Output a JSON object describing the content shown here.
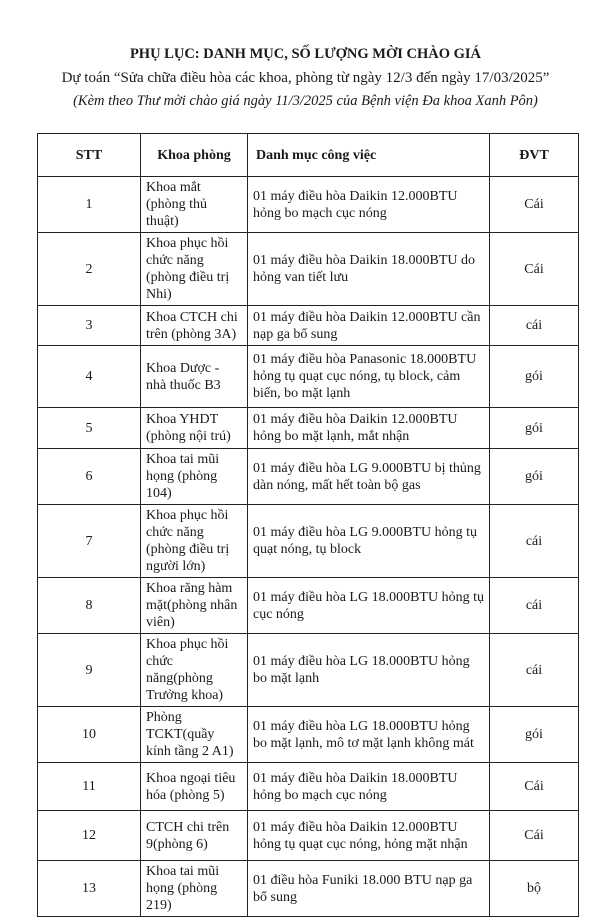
{
  "header": {
    "title": "PHỤ LỤC: DANH MỤC, SỐ LƯỢNG MỜI CHÀO GIÁ",
    "subtitle": "Dự toán “Sửa chữa điều hòa các khoa, phòng từ ngày 12/3 đến ngày 17/03/2025”",
    "note": "(Kèm theo Thư mời chào giá ngày 11/3/2025 của Bệnh viện Đa khoa Xanh Pôn)"
  },
  "table": {
    "columns": [
      "STT",
      "Khoa phòng",
      "Danh mục công việc",
      "ĐVT"
    ],
    "rows": [
      [
        "1",
        "Khoa mắt (phòng thủ thuật)",
        "01 máy điều hòa Daikin 12.000BTU hỏng bo mạch cục nóng",
        "Cái"
      ],
      [
        "2",
        "Khoa phục hồi chức năng (phòng điều trị Nhi)",
        "01 máy điều hòa Daikin 18.000BTU do hỏng van tiết lưu",
        "Cái"
      ],
      [
        "3",
        "Khoa CTCH chi trên (phòng 3A)",
        "01 máy điều hòa Daikin 12.000BTU cần nạp ga bổ sung",
        "cái"
      ],
      [
        "4",
        "Khoa Dược - nhà thuốc B3",
        "01 máy điều hòa Panasonic 18.000BTU hỏng tụ quạt cục nóng, tụ block, cảm biến, bo mặt lạnh",
        "gói"
      ],
      [
        "5",
        "Khoa YHDT (phòng nội trú)",
        "01 máy điều hòa Daikin 12.000BTU hỏng bo mặt lạnh, mắt nhận",
        "gói"
      ],
      [
        "6",
        "Khoa tai mũi họng (phòng 104)",
        "01 máy điều hòa LG 9.000BTU bị thủng dàn nóng, mất hết toàn bộ gas",
        "gói"
      ],
      [
        "7",
        "Khoa phục hồi chức năng (phòng điều trị người lớn)",
        "01 máy điều hòa LG 9.000BTU hỏng tụ quạt nóng, tụ block",
        "cái"
      ],
      [
        "8",
        "Khoa răng hàm mặt(phòng nhân viên)",
        "01 máy điều hòa LG 18.000BTU hỏng tụ cục nóng",
        "cái"
      ],
      [
        "9",
        "Khoa phục hồi chức năng(phòng Trưởng khoa)",
        "01 máy điều hòa LG 18.000BTU hỏng bo mặt lạnh",
        "cái"
      ],
      [
        "10",
        "Phòng TCKT(quầy kính tầng 2 A1)",
        "01 máy điều hòa LG 18.000BTU hỏng bo mặt lạnh, mô tơ mặt lạnh không mát",
        "gói"
      ],
      [
        "11",
        "Khoa ngoại tiêu hóa (phòng 5)",
        "01 máy điều hòa Daikin 18.000BTU hỏng bo mạch cục nóng",
        "Cái"
      ],
      [
        "12",
        "CTCH chi trên 9(phòng 6)",
        "01 máy điều hòa Daikin 12.000BTU hỏng tụ quạt cục nóng, hỏng mặt nhận",
        "Cái"
      ],
      [
        "13",
        "Khoa tai mũi họng (phòng 219)",
        "01 điều hòa Funiki 18.000 BTU nạp ga bổ sung",
        "bộ"
      ]
    ]
  }
}
